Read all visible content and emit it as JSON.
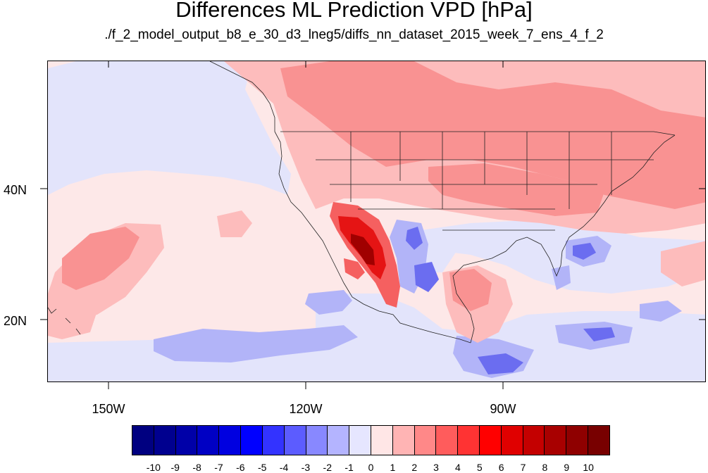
{
  "title": "Differences ML Prediction VPD [hPa]",
  "subtitle": "./f_2_model_output_b8_e_30_d3_lneg5/diffs_nn_dataset_2015_week_7_ens_4_f_2",
  "lat_labels": [
    "40N",
    "20N"
  ],
  "lon_labels": [
    "150W",
    "120W",
    "90W"
  ],
  "colorbar": {
    "labels": [
      "-10",
      "-9",
      "-8",
      "-7",
      "-6",
      "-5",
      "-4",
      "-3",
      "-2",
      "-1",
      "0",
      "1",
      "2",
      "3",
      "4",
      "5",
      "6",
      "7",
      "8",
      "9",
      "10"
    ],
    "colors": [
      "#000080",
      "#00008f",
      "#0000a8",
      "#0000c4",
      "#0000e0",
      "#0000ff",
      "#3333ff",
      "#5c5cff",
      "#8888ff",
      "#b4b4ff",
      "#e6e6ff",
      "#ffe6e6",
      "#ffb4b4",
      "#ff8888",
      "#ff5c5c",
      "#ff3333",
      "#ff0000",
      "#e00000",
      "#c40000",
      "#a80000",
      "#8f0000",
      "#780000"
    ]
  }
}
